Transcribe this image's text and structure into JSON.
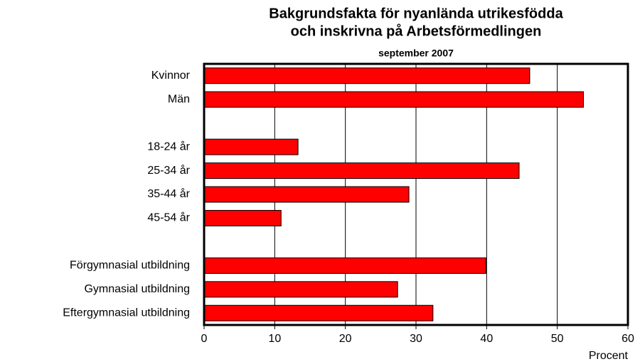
{
  "chart_data": {
    "type": "hbar",
    "title": [
      "Bakgrundsfakta för nyanlända utrikesfödda",
      "och inskrivna på Arbetsförmedlingen"
    ],
    "subtitle": "september 2007",
    "x_label": "Procent",
    "categories": [
      "Kvinnor",
      "Män",
      null,
      "18-24 år",
      "25-34 år",
      "35-44 år",
      "45-54 år",
      null,
      "Förgymnasial utbildning",
      "Gymnasial utbildning",
      "Eftergymnasial utbildning"
    ],
    "values": [
      46.1,
      53.7,
      null,
      13.3,
      44.6,
      29.0,
      10.9,
      null,
      39.9,
      27.4,
      32.4
    ],
    "color": "#ff0000",
    "xlim": [
      0,
      60
    ],
    "xticks": [
      0,
      10,
      20,
      30,
      40,
      50,
      60
    ],
    "grid": true
  }
}
